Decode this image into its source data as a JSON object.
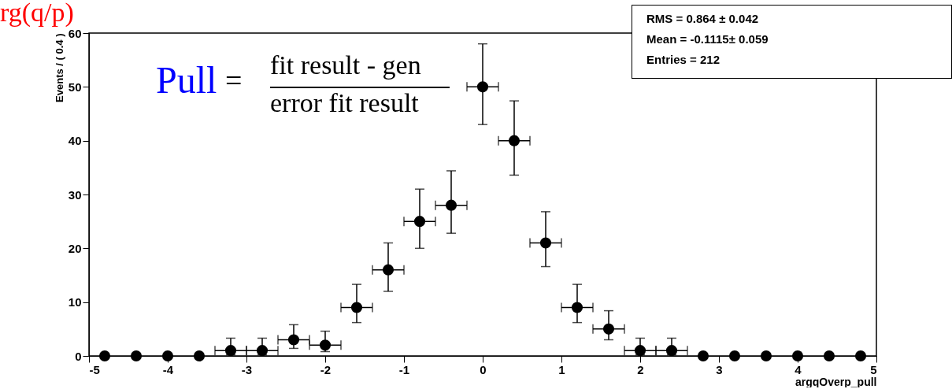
{
  "chart_data": {
    "type": "scatter",
    "title": "rg(q/p)",
    "xlabel": "argqOverp_pull",
    "ylabel": "Events / ( 0.4 )",
    "x": [
      -4.8,
      -4.4,
      -4.0,
      -3.6,
      -3.2,
      -2.8,
      -2.4,
      -2.0,
      -1.6,
      -1.2,
      -0.8,
      -0.4,
      0,
      0.4,
      0.8,
      1.2,
      1.6,
      2.0,
      2.4,
      2.8,
      3.2,
      3.6,
      4.0,
      4.4,
      4.8
    ],
    "values": [
      0,
      0,
      0,
      0,
      1,
      1,
      3,
      2,
      9,
      16,
      25,
      28,
      50,
      40,
      21,
      9,
      5,
      1,
      1,
      0,
      0,
      0,
      0,
      0,
      0
    ],
    "errors": [
      null,
      null,
      null,
      null,
      [
        0.2,
        3.3
      ],
      [
        0.2,
        3.3
      ],
      [
        1.4,
        5.8
      ],
      [
        0.8,
        4.6
      ],
      [
        6.2,
        13.3
      ],
      [
        12,
        21
      ],
      [
        20,
        31
      ],
      [
        22.8,
        34.4
      ],
      [
        43,
        58
      ],
      [
        33.6,
        47.4
      ],
      [
        16.6,
        26.8
      ],
      [
        6.2,
        13.3
      ],
      [
        3,
        8.4
      ],
      [
        0.2,
        3.3
      ],
      [
        0.2,
        3.3
      ],
      null,
      null,
      null,
      null,
      null,
      null
    ],
    "xerrors": [
      null,
      null,
      null,
      null,
      0.2,
      0.2,
      0.2,
      0.2,
      0.2,
      0.2,
      0.2,
      0.2,
      0.2,
      0.2,
      0.2,
      0.2,
      0.2,
      0.2,
      0.2,
      null,
      null,
      null,
      null,
      null,
      null
    ],
    "xlim": [
      -5,
      5
    ],
    "xticks": [
      -5,
      -4,
      -3,
      -2,
      -1,
      0,
      1,
      2,
      3,
      4,
      5
    ],
    "ylim": [
      0,
      60
    ],
    "yticks": [
      0,
      10,
      20,
      30,
      40,
      50,
      60
    ],
    "marker": "circle",
    "color": "#000000",
    "grid": false,
    "annotations": [
      "Pull",
      "=",
      "fit result - gen",
      "error fit result",
      "RMS = 0.864 ± 0.042",
      "Mean = -0.1115± 0.059",
      "Entries = 212"
    ]
  }
}
